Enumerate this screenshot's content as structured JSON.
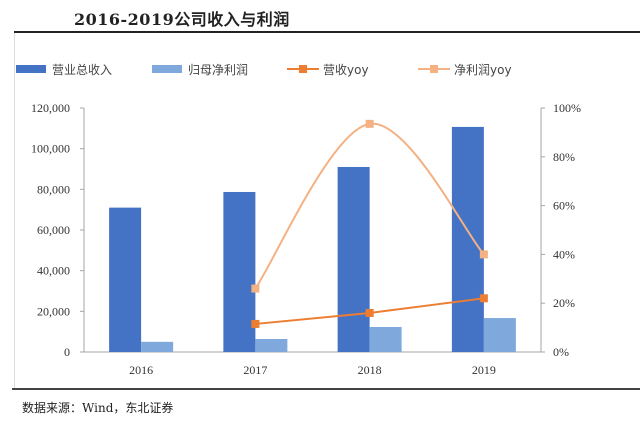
{
  "header": {
    "title": "2016-2019公司收入与利润"
  },
  "footer": {
    "source": "数据来源：Wind，东北证券"
  },
  "colors": {
    "revenue": "#4472C4",
    "net_profit": "#7FA9DC",
    "revenue_yoy": "#ED7D31",
    "profit_yoy": "#F4B183",
    "axis": "#A6A6A6"
  },
  "chart_data": {
    "type": "bar",
    "title": "2016-2019公司收入与利润",
    "categories": [
      "2016",
      "2017",
      "2018",
      "2019"
    ],
    "series": [
      {
        "name": "营业总收入",
        "kind": "bar",
        "axis": "left",
        "values": [
          71000,
          78700,
          91000,
          110700
        ]
      },
      {
        "name": "归母净利润",
        "kind": "bar",
        "axis": "left",
        "values": [
          5000,
          6400,
          12300,
          16700
        ]
      },
      {
        "name": "营收yoy",
        "kind": "line",
        "axis": "right",
        "smooth": false,
        "values": [
          null,
          11.5,
          16,
          22
        ]
      },
      {
        "name": "净利润yoy",
        "kind": "line",
        "axis": "right",
        "smooth": true,
        "values": [
          null,
          26,
          93.5,
          40
        ]
      }
    ],
    "left_axis": {
      "ylim": [
        0,
        120000
      ],
      "ticks": [
        "0",
        "20,000",
        "40,000",
        "60,000",
        "80,000",
        "100,000",
        "120,000"
      ]
    },
    "right_axis": {
      "ylim": [
        0,
        100
      ],
      "ticks": [
        "0%",
        "20%",
        "40%",
        "60%",
        "80%",
        "100%"
      ]
    },
    "xlabel": "",
    "ylabel": "",
    "grid": false,
    "legend": "top"
  }
}
